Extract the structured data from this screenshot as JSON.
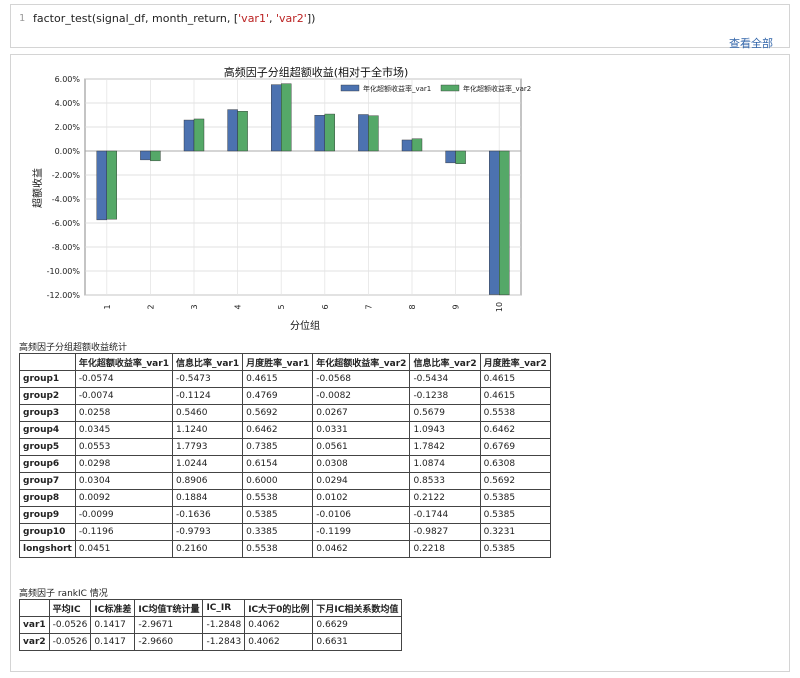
{
  "code_cell": {
    "line_number": "1",
    "code_prefix": "factor_test(signal_df, month_return, [",
    "code_arg1": "'var1'",
    "code_sep": ", ",
    "code_arg2": "'var2'",
    "code_suffix": "])",
    "view_all": "查看全部"
  },
  "chart_data": {
    "type": "bar",
    "title": "高频因子分组超额收益(相对于全市场)",
    "xlabel": "分位组",
    "ylabel": "超额收益",
    "categories": [
      "1",
      "2",
      "3",
      "4",
      "5",
      "6",
      "7",
      "8",
      "9",
      "10"
    ],
    "ylim": [
      -0.12,
      0.06
    ],
    "yticks": [
      0.06,
      0.04,
      0.02,
      0.0,
      -0.02,
      -0.04,
      -0.06,
      -0.08,
      -0.1,
      -0.12
    ],
    "ytick_labels": [
      "6.00%",
      "4.00%",
      "2.00%",
      "0.00%",
      "-2.00%",
      "-4.00%",
      "-6.00%",
      "-8.00%",
      "-10.00%",
      "-12.00%"
    ],
    "grid": true,
    "legend_position": "top-right",
    "series": [
      {
        "name": "年化超额收益率_var1",
        "color": "#4c72b0",
        "values": [
          -0.0574,
          -0.0074,
          0.0258,
          0.0345,
          0.0553,
          0.0298,
          0.0304,
          0.0092,
          -0.0099,
          -0.1196
        ]
      },
      {
        "name": "年化超额收益率_var2",
        "color": "#55a868",
        "values": [
          -0.0568,
          -0.0082,
          0.0267,
          0.0331,
          0.0561,
          0.0308,
          0.0294,
          0.0102,
          -0.0106,
          -0.1199
        ]
      }
    ]
  },
  "table1": {
    "caption": "高频因子分组超额收益统计",
    "headers": [
      "",
      "年化超额收益率_var1",
      "信息比率_var1",
      "月度胜率_var1",
      "年化超额收益率_var2",
      "信息比率_var2",
      "月度胜率_var2"
    ],
    "rows": [
      [
        "group1",
        "-0.0574",
        "-0.5473",
        "0.4615",
        "-0.0568",
        "-0.5434",
        "0.4615"
      ],
      [
        "group2",
        "-0.0074",
        "-0.1124",
        "0.4769",
        "-0.0082",
        "-0.1238",
        "0.4615"
      ],
      [
        "group3",
        "0.0258",
        "0.5460",
        "0.5692",
        "0.0267",
        "0.5679",
        "0.5538"
      ],
      [
        "group4",
        "0.0345",
        "1.1240",
        "0.6462",
        "0.0331",
        "1.0943",
        "0.6462"
      ],
      [
        "group5",
        "0.0553",
        "1.7793",
        "0.7385",
        "0.0561",
        "1.7842",
        "0.6769"
      ],
      [
        "group6",
        "0.0298",
        "1.0244",
        "0.6154",
        "0.0308",
        "1.0874",
        "0.6308"
      ],
      [
        "group7",
        "0.0304",
        "0.8906",
        "0.6000",
        "0.0294",
        "0.8533",
        "0.5692"
      ],
      [
        "group8",
        "0.0092",
        "0.1884",
        "0.5538",
        "0.0102",
        "0.2122",
        "0.5385"
      ],
      [
        "group9",
        "-0.0099",
        "-0.1636",
        "0.5385",
        "-0.0106",
        "-0.1744",
        "0.5385"
      ],
      [
        "group10",
        "-0.1196",
        "-0.9793",
        "0.3385",
        "-0.1199",
        "-0.9827",
        "0.3231"
      ],
      [
        "longshort",
        "0.0451",
        "0.2160",
        "0.5538",
        "0.0462",
        "0.2218",
        "0.5385"
      ]
    ]
  },
  "table2": {
    "caption": "高频因子 rankIC 情况",
    "headers": [
      "",
      "平均IC",
      "IC标准差",
      "IC均值T统计量",
      "IC_IR",
      "IC大于0的比例",
      "下月IC相关系数均值"
    ],
    "rows": [
      [
        "var1",
        "-0.0526",
        "0.1417",
        "-2.9671",
        "-1.2848",
        "0.4062",
        "0.6629"
      ],
      [
        "var2",
        "-0.0526",
        "0.1417",
        "-2.9660",
        "-1.2843",
        "0.4062",
        "0.6631"
      ]
    ]
  }
}
